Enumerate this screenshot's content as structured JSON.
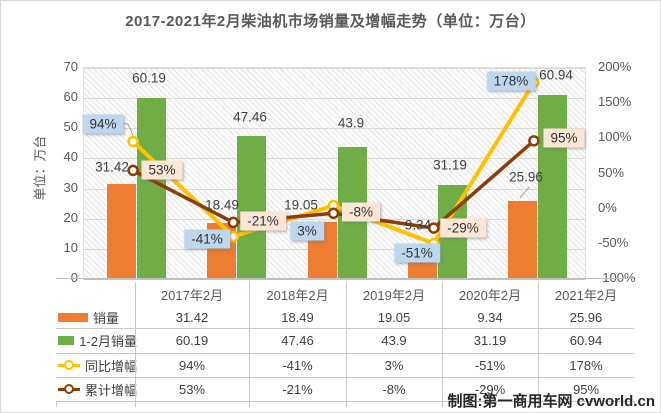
{
  "title": "2017-2021年2月柴油机市场销量及增幅走势（单位：万台）",
  "left_axis": {
    "title": "单位：万台",
    "min": 0,
    "max": 70,
    "step": 10,
    "ticks": [
      "70",
      "60",
      "50",
      "40",
      "30",
      "20",
      "10",
      "0"
    ]
  },
  "right_axis": {
    "min": -100,
    "max": 200,
    "step": 50,
    "ticks": [
      "200%",
      "150%",
      "100%",
      "50%",
      "0%",
      "-50%",
      "-100%"
    ]
  },
  "chart_data": {
    "type": "combo-bar-line",
    "categories": [
      "2017年2月",
      "2018年2月",
      "2019年2月",
      "2020年2月",
      "2021年2月"
    ],
    "series": [
      {
        "name": "销量",
        "type": "bar",
        "axis": "left",
        "color": "#ED7D31",
        "values": [
          31.42,
          18.49,
          19.05,
          9.34,
          25.96
        ],
        "labels": [
          "31.42",
          "18.49",
          "19.05",
          "9.34",
          "25.96"
        ]
      },
      {
        "name": "1-2月销量",
        "type": "bar",
        "axis": "left",
        "color": "#70AD47",
        "values": [
          60.19,
          47.46,
          43.9,
          31.19,
          60.94
        ],
        "labels": [
          "60.19",
          "47.46",
          "43.9",
          "31.19",
          "60.94"
        ]
      },
      {
        "name": "同比增幅",
        "type": "line",
        "axis": "right",
        "color": "#FFC000",
        "values": [
          94,
          -41,
          3,
          -51,
          178
        ],
        "labels": [
          "94%",
          "-41%",
          "3%",
          "-51%",
          "178%"
        ],
        "label_bg": "#BDD7EE"
      },
      {
        "name": "累计增幅",
        "type": "line",
        "axis": "right",
        "color": "#8B3D05",
        "values": [
          53,
          -21,
          -8,
          -29,
          95
        ],
        "labels": [
          "53%",
          "-21%",
          "-8%",
          "-29%",
          "95%"
        ],
        "label_bg": "#FBE5D6"
      }
    ],
    "plot_background": "diagonal-hatch",
    "grid": true,
    "legend_position": "data-table-left"
  },
  "colors": {
    "sales_bar": "#ED7D31",
    "cum_sales_bar": "#70AD47",
    "yoy_line": "#FFC000",
    "cum_growth_line": "#8B3D05",
    "yoy_label_bg": "#BDD7EE",
    "cum_label_bg": "#FBE5D6",
    "grid": "#D9D9D9",
    "axis_text": "#595959",
    "title_text": "#595959"
  },
  "credit": "制图:第一商用车网 cvworld.cn"
}
